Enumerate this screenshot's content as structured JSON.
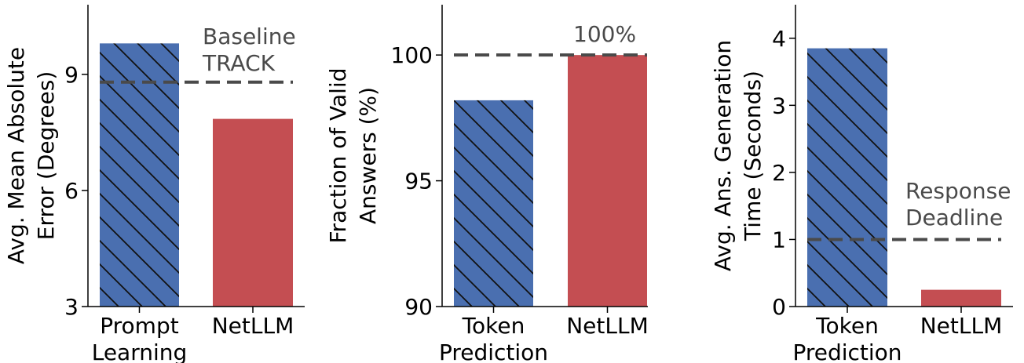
{
  "colors": {
    "blue": "#4a6fb0",
    "red": "#c44e52",
    "reference_line": "#4a4a4a",
    "axis": "#000000",
    "text": "#000000",
    "annotation_text": "#4a4a4a"
  },
  "chart_data": [
    {
      "type": "bar",
      "ylabel": [
        "Avg. Mean Absolute",
        "Error (Degrees)"
      ],
      "ylim": [
        3,
        10.8
      ],
      "yticks": [
        3,
        6,
        9
      ],
      "grid": false,
      "categories": [
        [
          "Prompt",
          "Learning"
        ],
        [
          "NetLLM"
        ]
      ],
      "values": [
        9.8,
        7.85
      ],
      "bar_styles": [
        "hatched-blue",
        "solid-red"
      ],
      "reference_line": {
        "value": 8.8,
        "label": [
          "Baseline",
          "TRACK"
        ],
        "style": "dashed"
      }
    },
    {
      "type": "bar",
      "ylabel": [
        "Fraction of Valid",
        "Answers (%)"
      ],
      "ylim": [
        90,
        102
      ],
      "yticks": [
        90,
        95,
        100
      ],
      "grid": false,
      "categories": [
        [
          "Token",
          "Prediction"
        ],
        [
          "NetLLM"
        ]
      ],
      "values": [
        98.2,
        100
      ],
      "bar_styles": [
        "hatched-blue",
        "solid-red"
      ],
      "reference_line": {
        "value": 100,
        "label": [
          "100%"
        ],
        "style": "dashed"
      }
    },
    {
      "type": "bar",
      "ylabel": [
        "Avg. Ans. Generation",
        "Time (Seconds)"
      ],
      "ylim": [
        0,
        4.5
      ],
      "yticks": [
        0,
        1,
        2,
        3,
        4
      ],
      "grid": false,
      "categories": [
        [
          "Token",
          "Prediction"
        ],
        [
          "NetLLM"
        ]
      ],
      "values": [
        3.85,
        0.25
      ],
      "bar_styles": [
        "hatched-blue",
        "solid-red"
      ],
      "reference_line": {
        "value": 1,
        "label": [
          "Response",
          "Deadline"
        ],
        "style": "dashed"
      }
    }
  ]
}
